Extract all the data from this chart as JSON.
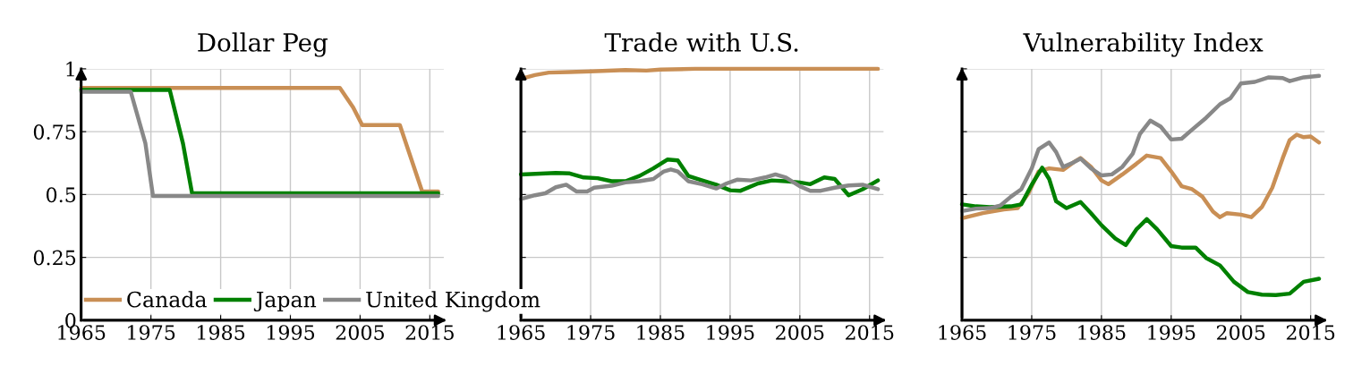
{
  "chart_data": [
    {
      "type": "line",
      "title": "Dollar Peg",
      "xlim": [
        1965,
        2017
      ],
      "xticks": [
        1965,
        1975,
        1985,
        1995,
        2005,
        2015
      ],
      "ylim": [
        0,
        1
      ],
      "yticks": [
        0,
        0.25,
        0.5,
        0.75,
        1
      ],
      "grid": true,
      "legend": "bottom",
      "marker": "none",
      "line_style": "solid",
      "series": [
        {
          "name": "Canada",
          "color": "#c98f55",
          "x": [
            1965,
            2002.1,
            2004,
            2005.3,
            2010.7,
            2013.9,
            2016.2
          ],
          "values": [
            0.924,
            0.924,
            0.847,
            0.776,
            0.776,
            0.512,
            0.512
          ]
        },
        {
          "name": "Japan",
          "color": "#008000",
          "x": [
            1965,
            1977.7,
            1979.6,
            1980.9,
            2016.2
          ],
          "values": [
            0.916,
            0.916,
            0.703,
            0.505,
            0.505
          ]
        },
        {
          "name": "United Kingdom",
          "color": "#888888",
          "x": [
            1965,
            1972.1,
            1974.2,
            1975.3,
            2016.2
          ],
          "values": [
            0.909,
            0.909,
            0.705,
            0.494,
            0.494
          ]
        }
      ]
    },
    {
      "type": "line",
      "title": "Trade with U.S.",
      "xlim": [
        1965,
        2017
      ],
      "xticks": [
        1965,
        1975,
        1985,
        1995,
        2005,
        2015
      ],
      "ylim": [
        0,
        1
      ],
      "yticks": [
        0,
        0.25,
        0.5,
        0.75,
        1
      ],
      "grid": true,
      "tick_labels": "x",
      "marker": "none",
      "line_style": "solid",
      "series": [
        {
          "color": "#c98f55",
          "x": [
            1965,
            1967,
            1969,
            1972,
            1975,
            1980,
            1983,
            1985,
            1990,
            2016.2
          ],
          "values": [
            0.96,
            0.975,
            0.985,
            0.987,
            0.99,
            0.995,
            0.993,
            0.997,
            1,
            1
          ]
        },
        {
          "color": "#008000",
          "x": [
            1965,
            1970,
            1972,
            1974,
            1976,
            1978,
            1980,
            1982,
            1984,
            1986,
            1987.5,
            1989,
            1991,
            1993,
            1995,
            1996.5,
            1999,
            2001,
            2003,
            2005,
            2006.5,
            2008.5,
            2010,
            2012,
            2014,
            2016.2
          ],
          "values": [
            0.58,
            0.586,
            0.584,
            0.568,
            0.565,
            0.553,
            0.553,
            0.574,
            0.604,
            0.639,
            0.636,
            0.574,
            0.556,
            0.539,
            0.517,
            0.515,
            0.544,
            0.556,
            0.553,
            0.548,
            0.541,
            0.568,
            0.562,
            0.497,
            0.521,
            0.556
          ]
        },
        {
          "color": "#888888",
          "x": [
            1965,
            1967,
            1968.5,
            1970,
            1971.5,
            1973,
            1974.5,
            1975.5,
            1978,
            1980,
            1982,
            1984,
            1985.5,
            1986.5,
            1987.5,
            1989,
            1991,
            1993,
            1994.5,
            1996,
            1998,
            2000,
            2001.5,
            2003,
            2005,
            2006.5,
            2008,
            2010,
            2012,
            2014,
            2016.2
          ],
          "values": [
            0.482,
            0.497,
            0.505,
            0.529,
            0.539,
            0.512,
            0.512,
            0.527,
            0.535,
            0.548,
            0.553,
            0.562,
            0.592,
            0.6,
            0.592,
            0.553,
            0.541,
            0.524,
            0.544,
            0.559,
            0.556,
            0.568,
            0.58,
            0.568,
            0.533,
            0.515,
            0.515,
            0.527,
            0.536,
            0.539,
            0.521
          ]
        }
      ]
    },
    {
      "type": "line",
      "title": "Vulnerability Index",
      "xlim": [
        1965,
        2017
      ],
      "xticks": [
        1965,
        1975,
        1985,
        1995,
        2005,
        2015
      ],
      "ylim": [
        0,
        1
      ],
      "yticks": [
        0,
        0.25,
        0.5,
        0.75,
        1
      ],
      "grid": true,
      "tick_labels": "x",
      "marker": "none",
      "line_style": "solid",
      "series": [
        {
          "color": "#c98f55",
          "x": [
            1965,
            1968,
            1971,
            1973,
            1974.5,
            1976,
            1977.5,
            1979.5,
            1981,
            1982,
            1983.5,
            1985,
            1986,
            1988,
            1990,
            1991.5,
            1993.5,
            1995,
            1996.5,
            1998,
            1999.5,
            2001,
            2002,
            2003,
            2005,
            2006.5,
            2008,
            2009.5,
            2011,
            2012,
            2013,
            2014,
            2015,
            2016.2
          ],
          "values": [
            0.406,
            0.426,
            0.441,
            0.446,
            0.503,
            0.592,
            0.604,
            0.598,
            0.628,
            0.645,
            0.61,
            0.556,
            0.541,
            0.58,
            0.622,
            0.655,
            0.645,
            0.592,
            0.533,
            0.521,
            0.491,
            0.432,
            0.41,
            0.426,
            0.42,
            0.41,
            0.45,
            0.527,
            0.645,
            0.717,
            0.738,
            0.728,
            0.731,
            0.707
          ]
        },
        {
          "color": "#008000",
          "x": [
            1965,
            1967,
            1969,
            1972,
            1973.5,
            1975,
            1976.5,
            1977.5,
            1978.5,
            1980,
            1982,
            1983.5,
            1985,
            1987,
            1988.5,
            1990,
            1991.5,
            1993,
            1995,
            1996.5,
            1998.5,
            2000,
            2002,
            2004,
            2006,
            2008,
            2010,
            2012,
            2014,
            2016.2
          ],
          "values": [
            0.461,
            0.453,
            0.45,
            0.453,
            0.461,
            0.539,
            0.607,
            0.562,
            0.473,
            0.446,
            0.47,
            0.426,
            0.378,
            0.325,
            0.299,
            0.361,
            0.402,
            0.361,
            0.295,
            0.289,
            0.289,
            0.248,
            0.218,
            0.153,
            0.112,
            0.102,
            0.1,
            0.106,
            0.153,
            0.165
          ]
        },
        {
          "color": "#888888",
          "x": [
            1965,
            1967,
            1969,
            1970.5,
            1972,
            1973.5,
            1975,
            1976,
            1977.5,
            1978.5,
            1979.5,
            1981,
            1982,
            1983.5,
            1985,
            1986.5,
            1988,
            1989.5,
            1990.5,
            1992,
            1993.5,
            1995,
            1996.5,
            1998,
            2000,
            2002,
            2003.5,
            2005,
            2007,
            2009,
            2011,
            2012,
            2014,
            2016.2
          ],
          "values": [
            0.434,
            0.444,
            0.446,
            0.456,
            0.491,
            0.521,
            0.604,
            0.681,
            0.707,
            0.669,
            0.61,
            0.628,
            0.643,
            0.604,
            0.576,
            0.58,
            0.61,
            0.663,
            0.74,
            0.794,
            0.77,
            0.719,
            0.722,
            0.758,
            0.805,
            0.859,
            0.883,
            0.942,
            0.948,
            0.966,
            0.963,
            0.951,
            0.966,
            0.972
          ]
        }
      ]
    }
  ]
}
